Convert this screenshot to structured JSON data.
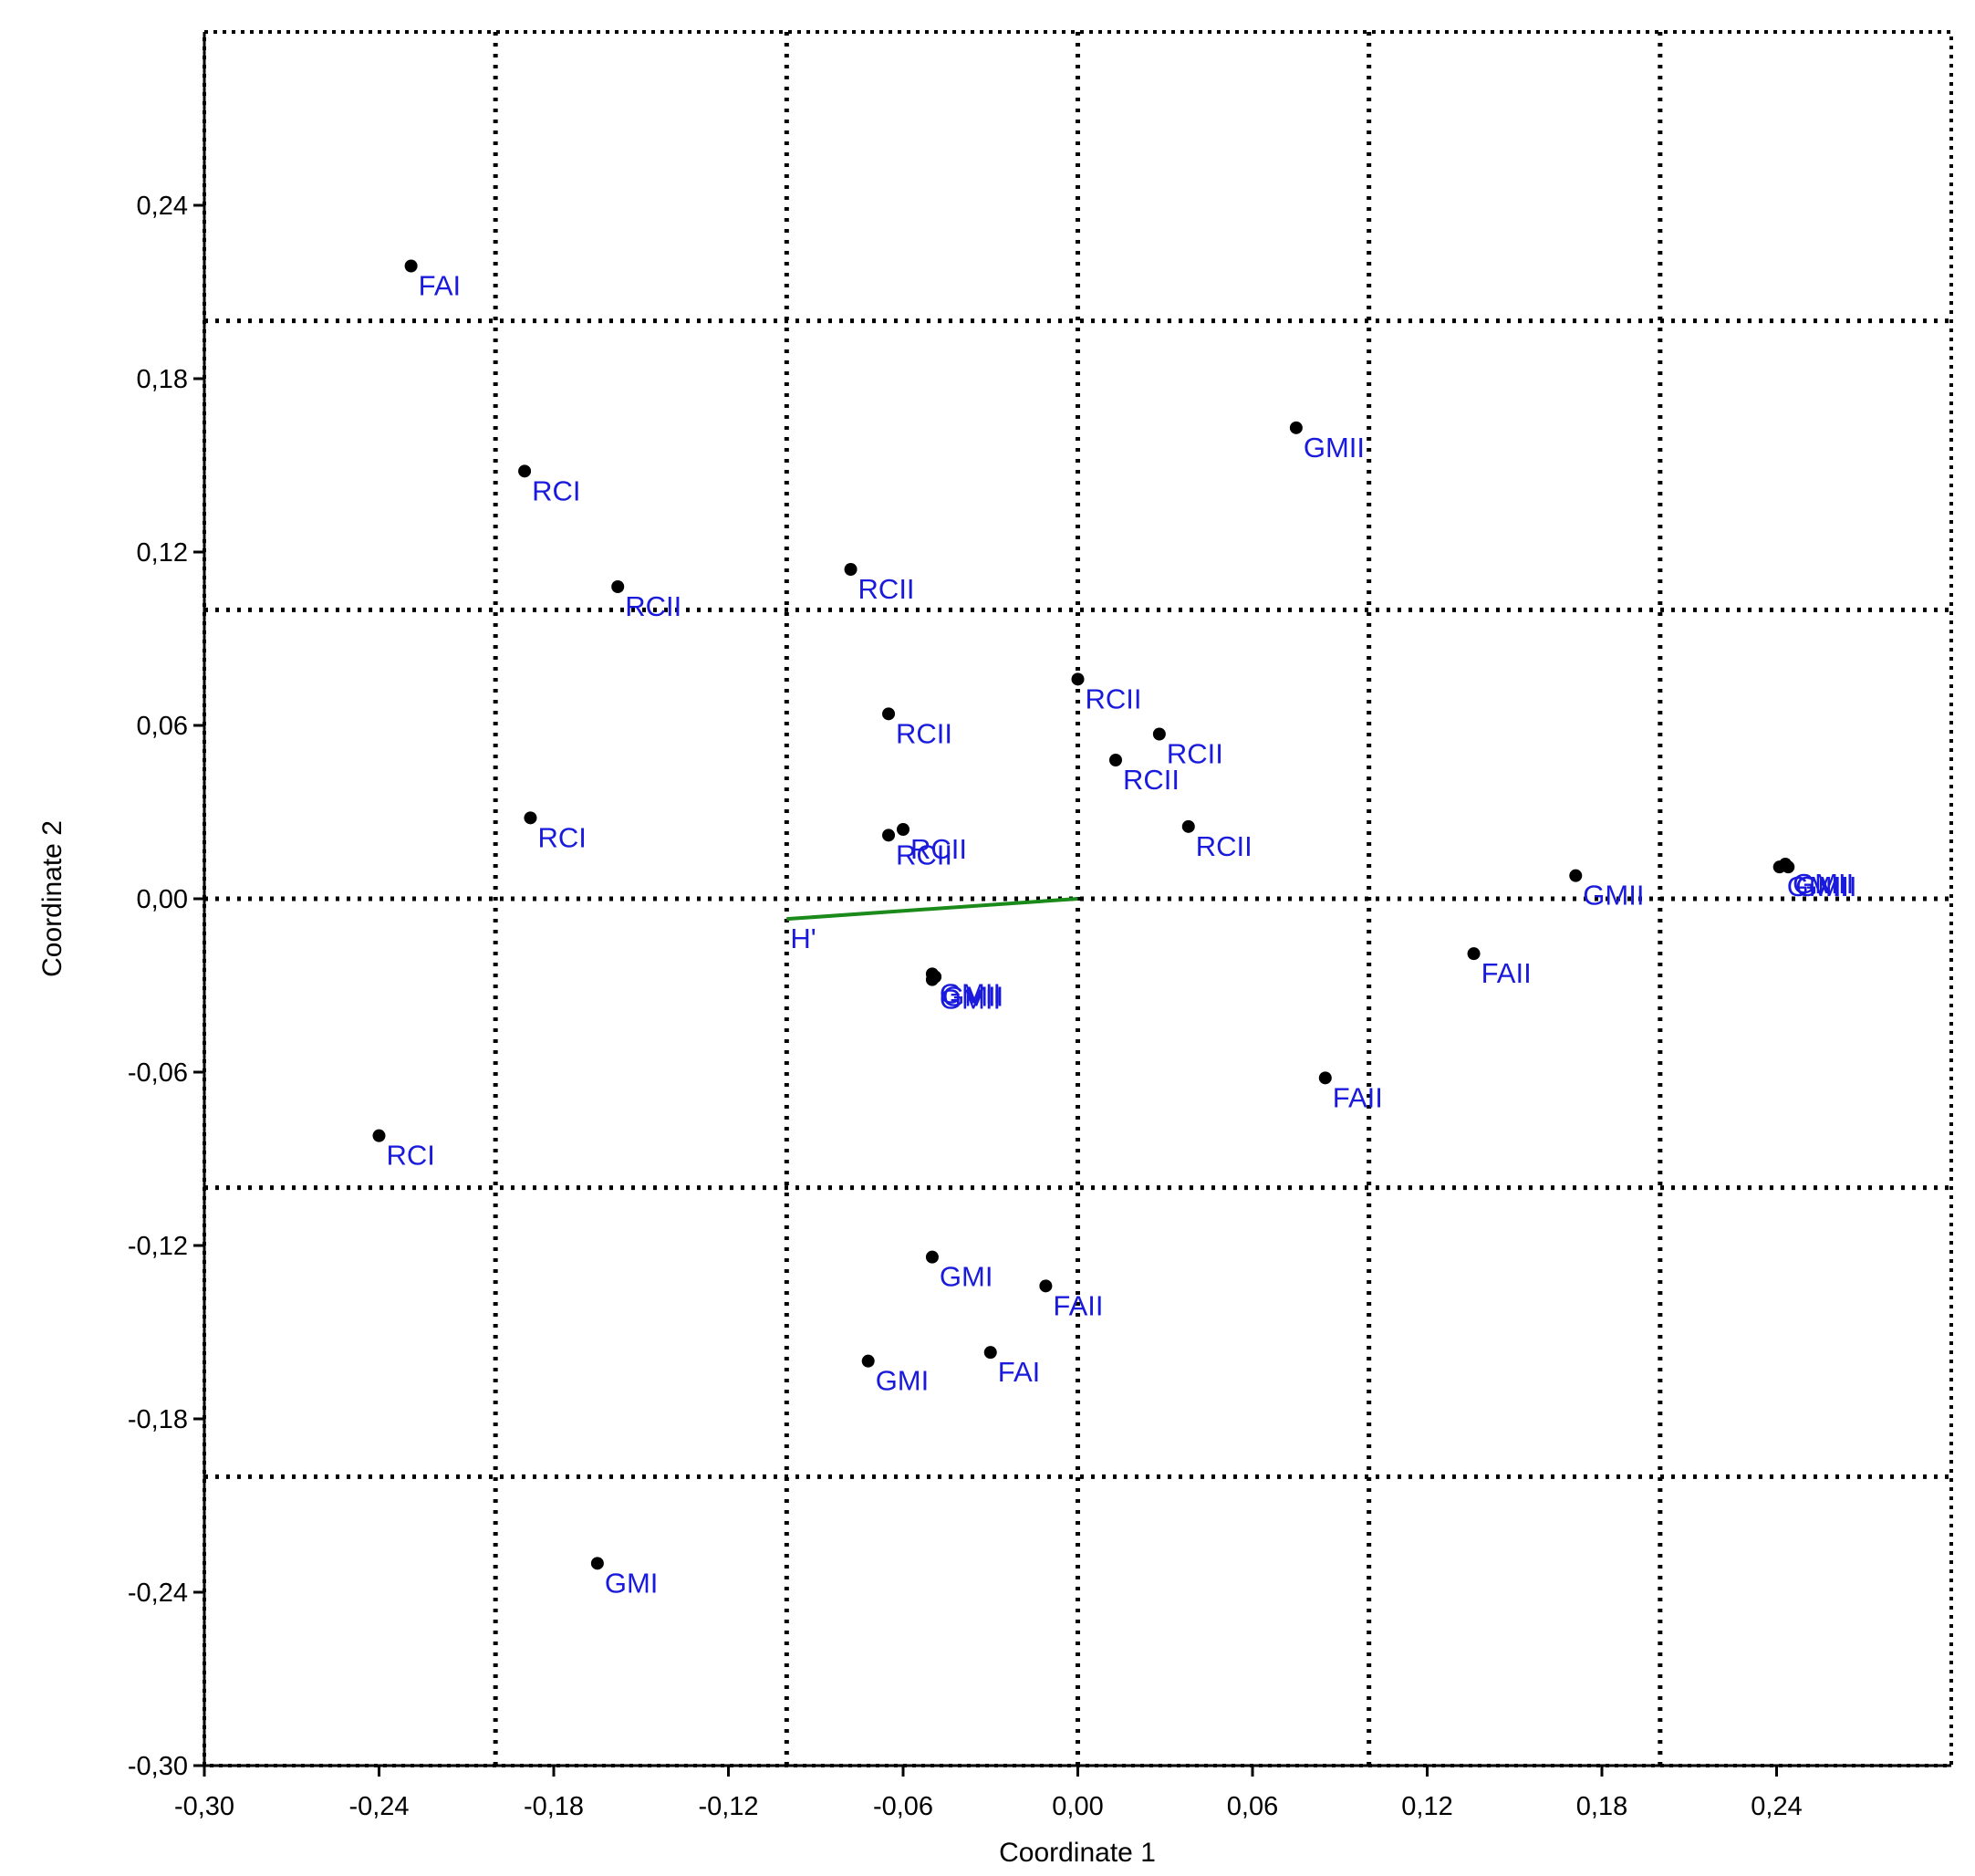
{
  "chart_data": {
    "type": "scatter",
    "title": "",
    "xlabel": "Coordinate 1",
    "ylabel": "Coordinate 2",
    "xlim": [
      -0.3,
      0.3
    ],
    "ylim": [
      -0.3,
      0.3
    ],
    "x_ticks": [
      -0.3,
      -0.24,
      -0.18,
      -0.12,
      -0.06,
      0.0,
      0.06,
      0.12,
      0.18,
      0.24
    ],
    "x_tick_labels": [
      "-0,30",
      "-0,24",
      "-0,18",
      "-0,12",
      "-0,06",
      "0,00",
      "0,06",
      "0,12",
      "0,18",
      "0,24"
    ],
    "y_ticks": [
      -0.3,
      -0.24,
      -0.18,
      -0.12,
      -0.06,
      0.0,
      0.06,
      0.12,
      0.18,
      0.24
    ],
    "y_tick_labels": [
      "-0,30",
      "-0,24",
      "-0,18",
      "-0,12",
      "-0,06",
      "0,00",
      "0,06",
      "0,12",
      "0,18",
      "0,24"
    ],
    "grid_x": [
      -0.2,
      -0.1,
      0.0,
      0.1,
      0.2
    ],
    "grid_y": [
      -0.2,
      -0.1,
      0.0,
      0.1,
      0.2
    ],
    "grid": true,
    "grid_style": "dotted",
    "point_color": "#000000",
    "label_color": "#1a1adc",
    "vector_color": "#1a8a1a",
    "points": [
      {
        "x": -0.229,
        "y": 0.219,
        "label": "FAI"
      },
      {
        "x": -0.19,
        "y": 0.148,
        "label": "RCI"
      },
      {
        "x": -0.158,
        "y": 0.108,
        "label": "RCII"
      },
      {
        "x": -0.078,
        "y": 0.114,
        "label": "RCII"
      },
      {
        "x": -0.188,
        "y": 0.028,
        "label": "RCI"
      },
      {
        "x": -0.065,
        "y": 0.064,
        "label": "RCII"
      },
      {
        "x": -0.065,
        "y": 0.022,
        "label": "RCII"
      },
      {
        "x": -0.06,
        "y": 0.024,
        "label": "RCII"
      },
      {
        "x": 0.0,
        "y": 0.076,
        "label": "RCII"
      },
      {
        "x": 0.028,
        "y": 0.057,
        "label": "RCII"
      },
      {
        "x": 0.013,
        "y": 0.048,
        "label": "RCII"
      },
      {
        "x": 0.038,
        "y": 0.025,
        "label": "RCII"
      },
      {
        "x": 0.075,
        "y": 0.163,
        "label": "GMII"
      },
      {
        "x": 0.171,
        "y": 0.008,
        "label": "GMII"
      },
      {
        "x": 0.241,
        "y": 0.011,
        "label": "GMII"
      },
      {
        "x": 0.243,
        "y": 0.012,
        "label": "GMII"
      },
      {
        "x": 0.244,
        "y": 0.011,
        "label": "GMII"
      },
      {
        "x": 0.136,
        "y": -0.019,
        "label": "FAII"
      },
      {
        "x": 0.085,
        "y": -0.062,
        "label": "FAII"
      },
      {
        "x": -0.05,
        "y": -0.026,
        "label": "GMII"
      },
      {
        "x": -0.049,
        "y": -0.027,
        "label": "GMII"
      },
      {
        "x": -0.05,
        "y": -0.028,
        "label": "GMII"
      },
      {
        "x": -0.24,
        "y": -0.082,
        "label": "RCI"
      },
      {
        "x": -0.05,
        "y": -0.124,
        "label": "GMI"
      },
      {
        "x": -0.011,
        "y": -0.134,
        "label": "FAII"
      },
      {
        "x": -0.03,
        "y": -0.157,
        "label": "FAI"
      },
      {
        "x": -0.072,
        "y": -0.16,
        "label": "GMI"
      },
      {
        "x": -0.165,
        "y": -0.23,
        "label": "GMI"
      }
    ],
    "vectors": [
      {
        "x0": 0.0,
        "y0": 0.0,
        "x1": -0.1,
        "y1": -0.007,
        "label": "H'"
      }
    ]
  }
}
